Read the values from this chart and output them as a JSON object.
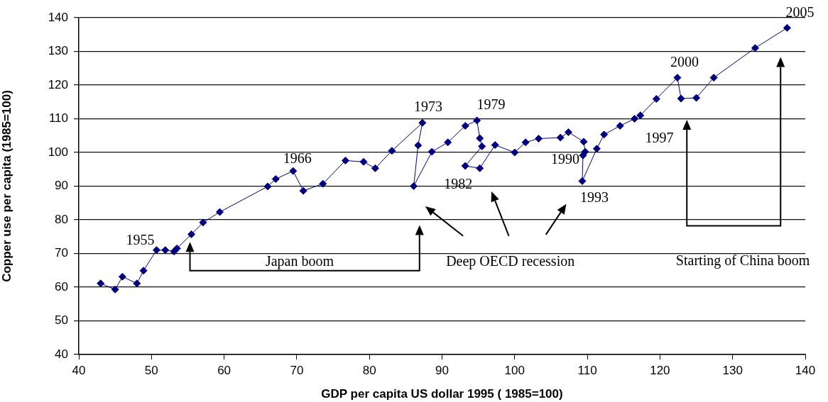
{
  "chart_data": {
    "type": "line",
    "xlabel": "GDP per capita US dollar 1995 ( 1985=100)",
    "ylabel": "Copper use per capita (1985=100)",
    "x": [
      43.0,
      45.0,
      46.0,
      48.0,
      48.9,
      50.7,
      51.9,
      53.1,
      53.5,
      55.5,
      57.1,
      59.4,
      66.0,
      67.1,
      69.5,
      70.9,
      73.6,
      76.7,
      79.2,
      80.8,
      83.1,
      87.3,
      86.7,
      86.1,
      88.6,
      90.8,
      93.2,
      94.8,
      95.2,
      95.5,
      93.2,
      95.2,
      97.3,
      100.0,
      101.5,
      103.3,
      106.3,
      107.4,
      109.5,
      109.7,
      109.4,
      109.3,
      111.3,
      112.3,
      114.5,
      116.5,
      117.3,
      119.5,
      122.4,
      122.9,
      125.0,
      127.4,
      133.1,
      137.5
    ],
    "series": [
      {
        "color": "#000080",
        "values": [
          61.1,
          59.3,
          63.1,
          61.1,
          64.9,
          71.0,
          71.0,
          70.6,
          71.5,
          75.7,
          79.2,
          82.3,
          89.9,
          92.1,
          94.5,
          88.6,
          90.7,
          97.6,
          97.2,
          95.3,
          100.5,
          108.8,
          102.1,
          90.0,
          100.2,
          103.0,
          107.9,
          109.5,
          104.2,
          101.8,
          96.0,
          95.3,
          102.2,
          100.0,
          103.0,
          104.1,
          104.4,
          106.0,
          103.2,
          100.2,
          99.1,
          91.5,
          101.1,
          105.3,
          107.9,
          110.0,
          111.0,
          115.9,
          122.2,
          116.0,
          116.2,
          122.2,
          131.0,
          137.0
        ]
      }
    ],
    "xlim": [
      40,
      140
    ],
    "ylim": [
      40,
      140
    ],
    "xticks": [
      40,
      50,
      60,
      70,
      80,
      90,
      100,
      110,
      120,
      130,
      140
    ],
    "yticks": [
      40,
      50,
      60,
      70,
      80,
      90,
      100,
      110,
      120,
      130,
      140
    ],
    "grid": "y",
    "marker": "diamond",
    "line_style": "solid",
    "annotations": [
      {
        "text": "1955",
        "x": 50.7,
        "y": 71.0
      },
      {
        "text": "1966",
        "x": 69.5,
        "y": 94.5
      },
      {
        "text": "1973",
        "x": 87.3,
        "y": 108.8
      },
      {
        "text": "1979",
        "x": 94.8,
        "y": 109.5
      },
      {
        "text": "1982",
        "x": 93.2,
        "y": 96.0
      },
      {
        "text": "1990",
        "x": 109.5,
        "y": 103.2
      },
      {
        "text": "1993",
        "x": 109.3,
        "y": 91.5
      },
      {
        "text": "1997",
        "x": 116.5,
        "y": 110.0
      },
      {
        "text": "2000",
        "x": 122.4,
        "y": 122.2
      },
      {
        "text": "2005",
        "x": 137.5,
        "y": 137.0
      },
      "Japan boom",
      "Deep OECD recession",
      "Starting of China boom"
    ]
  }
}
